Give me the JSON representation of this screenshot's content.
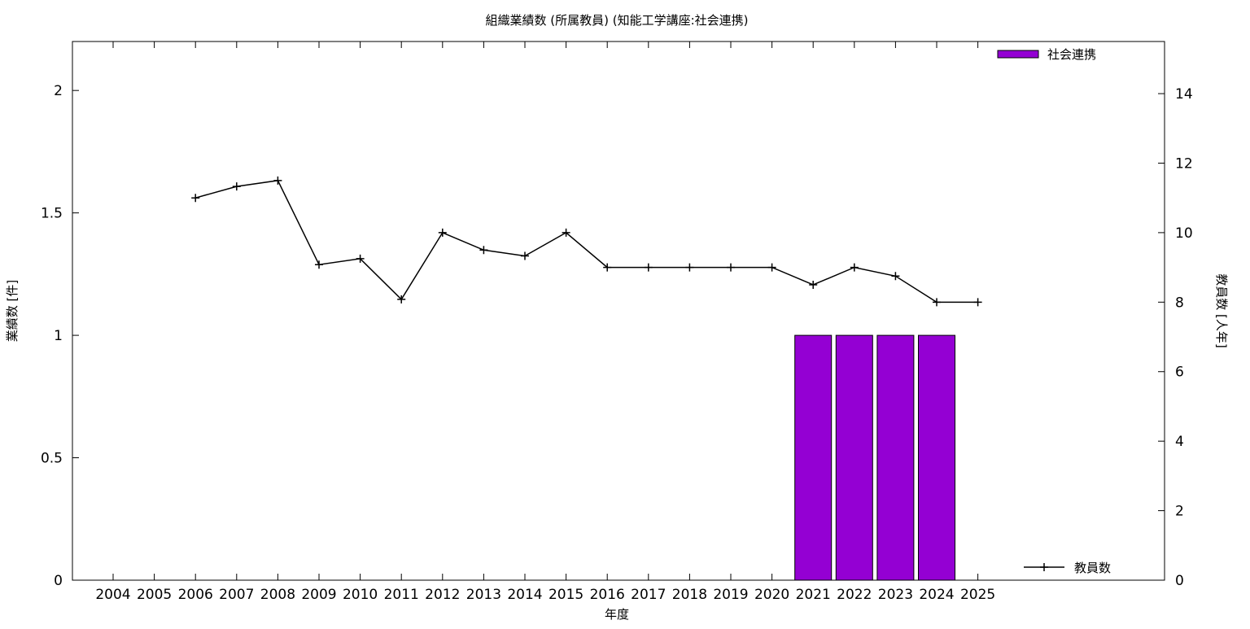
{
  "chart_data": {
    "type": "bar",
    "title": "組織業績数 (所属教員) (知能工学講座:社会連携)",
    "xlabel": "年度",
    "ylabel": "業績数 [件]",
    "y2label": "教員数 [人年]",
    "categories": [
      "2004",
      "2005",
      "2006",
      "2007",
      "2008",
      "2009",
      "2010",
      "2011",
      "2012",
      "2013",
      "2014",
      "2015",
      "2016",
      "2017",
      "2018",
      "2019",
      "2020",
      "2021",
      "2022",
      "2023",
      "2024",
      "2025"
    ],
    "ylim": [
      0,
      2.2
    ],
    "y2lim": [
      0,
      15.5
    ],
    "yticks": [
      "0",
      "0.5",
      "1",
      "1.5",
      "2"
    ],
    "y2ticks": [
      "0",
      "2",
      "4",
      "6",
      "8",
      "10",
      "12",
      "14"
    ],
    "grid": false,
    "series": [
      {
        "name": "社会連携",
        "type": "bar",
        "axis": "y",
        "color": "#9400d3",
        "values": [
          0,
          0,
          0,
          0,
          0,
          0,
          0,
          0,
          0,
          0,
          0,
          0,
          0,
          0,
          0,
          0,
          0,
          1,
          1,
          1,
          1,
          0
        ]
      },
      {
        "name": "教員数",
        "type": "line",
        "axis": "y2",
        "color": "#000000",
        "marker": "plus",
        "values": [
          null,
          null,
          11.0,
          11.33,
          11.5,
          9.08,
          9.25,
          8.08,
          10.0,
          9.5,
          9.33,
          10.0,
          9.0,
          9.0,
          9.0,
          9.0,
          9.0,
          8.5,
          9.0,
          8.75,
          8.0,
          8.0
        ]
      }
    ],
    "legend": {
      "bars_position": "top-right",
      "line_position": "bottom-right"
    }
  }
}
